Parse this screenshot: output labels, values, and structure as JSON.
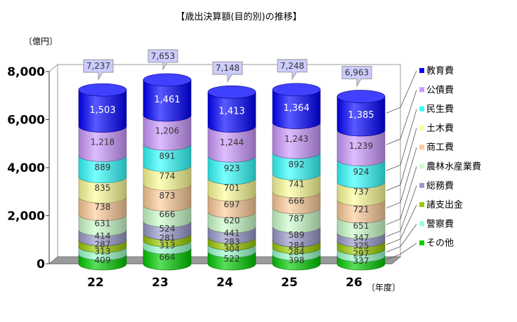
{
  "chart_data": {
    "type": "bar",
    "stacked": true,
    "title": "【歳出決算額(目的別)の推移】",
    "ylabel": "〔億円〕",
    "xlabel": "〔年度〕",
    "ylim": [
      0,
      8000
    ],
    "yticks": [
      "0",
      "2,000",
      "4,000",
      "6,000",
      "8,000"
    ],
    "categories": [
      "22",
      "23",
      "24",
      "25",
      "26"
    ],
    "totals": [
      "7,237",
      "7,653",
      "7,148",
      "7,248",
      "6,963"
    ],
    "legend_position": "right",
    "series": [
      {
        "name": "その他",
        "color": "#00cc00",
        "values": [
          409,
          664,
          522,
          398,
          337
        ]
      },
      {
        "name": "警察費",
        "color": "#99ffcc",
        "values": [
          313,
          313,
          304,
          284,
          297
        ]
      },
      {
        "name": "諸支出金",
        "color": "#99cc00",
        "values": [
          287,
          281,
          283,
          284,
          325
        ]
      },
      {
        "name": "総務費",
        "color": "#9999cc",
        "values": [
          414,
          524,
          441,
          589,
          347
        ]
      },
      {
        "name": "農林水産業費",
        "color": "#ccffcc",
        "values": [
          631,
          666,
          620,
          787,
          651
        ]
      },
      {
        "name": "商工費",
        "color": "#ffcc99",
        "values": [
          738,
          873,
          697,
          666,
          721
        ]
      },
      {
        "name": "土木費",
        "color": "#ffff99",
        "values": [
          835,
          774,
          701,
          741,
          737
        ]
      },
      {
        "name": "民生費",
        "color": "#33ffff",
        "values": [
          889,
          891,
          923,
          892,
          924
        ]
      },
      {
        "name": "公債費",
        "color": "#cc99ff",
        "values": [
          1218,
          1206,
          1244,
          1243,
          1239
        ]
      },
      {
        "name": "教育費",
        "color": "#0000ff",
        "values": [
          1503,
          1461,
          1413,
          1364,
          1385
        ]
      }
    ],
    "value_labels": [
      [
        "409",
        "664",
        "522",
        "398",
        "337"
      ],
      [
        "313",
        "313",
        "304",
        "284",
        "297"
      ],
      [
        "287",
        "281",
        "283",
        "284",
        "325"
      ],
      [
        "414",
        "524",
        "441",
        "589",
        "347"
      ],
      [
        "631",
        "666",
        "620",
        "787",
        "651"
      ],
      [
        "738",
        "873",
        "697",
        "666",
        "721"
      ],
      [
        "835",
        "774",
        "701",
        "741",
        "737"
      ],
      [
        "889",
        "891",
        "923",
        "892",
        "924"
      ],
      [
        "1,218",
        "1,206",
        "1,244",
        "1,243",
        "1,239"
      ],
      [
        "1,503",
        "1,461",
        "1,413",
        "1,364",
        "1,385"
      ]
    ]
  }
}
